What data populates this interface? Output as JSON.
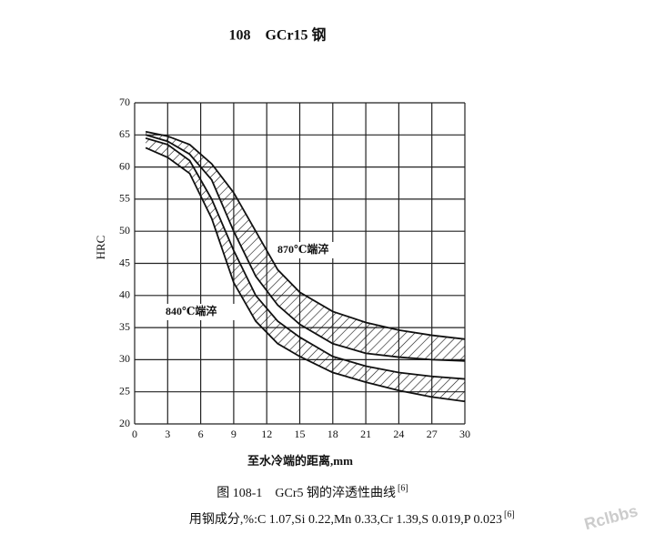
{
  "chart_data": {
    "type": "band",
    "title": "108　GCr15 钢",
    "x_label": "至水冷端的距离,mm",
    "y_label": "HRC",
    "caption": "图 108-1　GCr5 钢的淬透性曲线",
    "caption_ref": "[6]",
    "composition": "用钢成分,%:C 1.07,Si 0.22,Mn 0.33,Cr 1.39,S 0.019,P 0.023",
    "composition_ref": "[6]",
    "watermark": "Rclbbs",
    "x": [
      1,
      3,
      5,
      7,
      9,
      11,
      13,
      15,
      18,
      21,
      24,
      27,
      30
    ],
    "series": [
      {
        "name": "870℃端淬",
        "color": "#111",
        "upper": [
          65.5,
          64.8,
          63.5,
          60.5,
          56,
          50,
          44,
          40.5,
          37.5,
          35.8,
          34.6,
          33.8,
          33.2
        ],
        "lower": [
          65,
          64,
          62,
          58,
          50,
          43,
          38.5,
          35.5,
          32.5,
          31,
          30.4,
          30,
          29.8
        ]
      },
      {
        "name": "840℃端淬",
        "color": "#111",
        "upper": [
          64.5,
          63.5,
          61,
          55,
          47,
          40,
          36,
          33.5,
          30.5,
          29,
          28,
          27.4,
          27
        ],
        "lower": [
          63,
          61.5,
          59,
          52,
          42,
          36,
          32.5,
          30.5,
          28,
          26.5,
          25.2,
          24.2,
          23.5
        ]
      }
    ],
    "xlim": [
      0,
      30
    ],
    "xticks": [
      0,
      3,
      6,
      9,
      12,
      15,
      18,
      21,
      24,
      27,
      30
    ],
    "ylim": [
      20,
      70
    ],
    "yticks": [
      20,
      25,
      30,
      35,
      40,
      45,
      50,
      55,
      60,
      65,
      70
    ],
    "grid": true
  }
}
